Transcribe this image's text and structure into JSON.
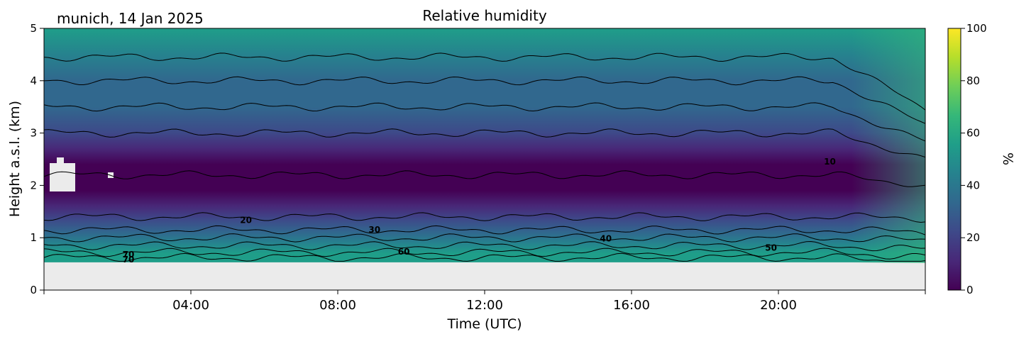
{
  "header": {
    "location_date": "munich, 14 Jan 2025",
    "title": "Relative humidity"
  },
  "chart_data": {
    "type": "heatmap",
    "title": "Relative humidity",
    "xlabel": "Time (UTC)",
    "ylabel": "Height a.s.l. (km)",
    "x_ticks": [
      "04:00",
      "08:00",
      "12:00",
      "16:00",
      "20:00"
    ],
    "x_tick_hours": [
      4,
      8,
      12,
      16,
      20
    ],
    "xlim_hours": [
      0,
      24
    ],
    "y_ticks": [
      "0",
      "1",
      "2",
      "3",
      "4",
      "5"
    ],
    "ylim_km": [
      0,
      5
    ],
    "data_lower_limit_km": 0.53,
    "colorbar": {
      "label": "%",
      "ticks": [
        "0",
        "20",
        "40",
        "60",
        "80",
        "100"
      ],
      "range": [
        0,
        100
      ],
      "colormap": "viridis"
    },
    "contour_levels_km": [
      {
        "level": 70,
        "h": 0.62
      },
      {
        "level": 60,
        "h": 0.72
      },
      {
        "level": 50,
        "h": 0.85
      },
      {
        "level": 40,
        "h": 1.0
      },
      {
        "level": 30,
        "h": 1.15
      },
      {
        "level": 20,
        "h": 1.4
      },
      {
        "level": 10,
        "h": 2.2
      },
      {
        "level": 20,
        "h": 3.0
      },
      {
        "level": 30,
        "h": 3.5
      },
      {
        "level": 40,
        "h": 4.0
      },
      {
        "level": 50,
        "h": 4.45
      }
    ],
    "contour_labels": [
      {
        "text": "70",
        "hour": 2.3,
        "km": 0.62
      },
      {
        "text": "70",
        "hour": 2.3,
        "km": 0.53
      },
      {
        "text": "20",
        "hour": 5.5,
        "km": 1.28
      },
      {
        "text": "30",
        "hour": 9.0,
        "km": 1.1
      },
      {
        "text": "60",
        "hour": 9.8,
        "km": 0.68
      },
      {
        "text": "40",
        "hour": 15.3,
        "km": 0.93
      },
      {
        "text": "50",
        "hour": 19.8,
        "km": 0.75
      },
      {
        "text": "10",
        "hour": 21.4,
        "km": 2.4
      }
    ],
    "profile_rh": [
      {
        "km": 0.55,
        "rh": 58
      },
      {
        "km": 0.7,
        "rh": 52
      },
      {
        "km": 0.9,
        "rh": 42
      },
      {
        "km": 1.1,
        "rh": 32
      },
      {
        "km": 1.35,
        "rh": 20
      },
      {
        "km": 1.6,
        "rh": 10
      },
      {
        "km": 1.9,
        "rh": 5
      },
      {
        "km": 2.1,
        "rh": 3
      },
      {
        "km": 2.4,
        "rh": 5
      },
      {
        "km": 2.7,
        "rh": 10
      },
      {
        "km": 3.0,
        "rh": 18
      },
      {
        "km": 3.5,
        "rh": 28
      },
      {
        "km": 4.0,
        "rh": 38
      },
      {
        "km": 4.5,
        "rh": 48
      },
      {
        "km": 5.0,
        "rh": 56
      }
    ],
    "colors": {
      "viridis": [
        "#440154",
        "#482878",
        "#3e4989",
        "#31688e",
        "#26828e",
        "#1f9e89",
        "#35b779",
        "#6ece58",
        "#b5de2b",
        "#fde725"
      ],
      "no_data": "#ebebeb",
      "contour": "#000000"
    }
  }
}
